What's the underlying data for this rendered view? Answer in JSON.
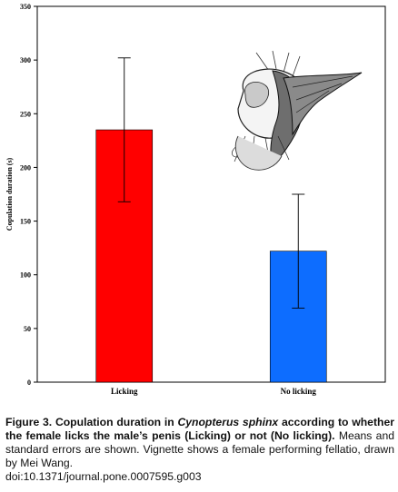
{
  "chart_data": {
    "type": "bar",
    "categories": [
      "Licking",
      "No licking"
    ],
    "values": [
      235,
      122
    ],
    "error": [
      67,
      53
    ],
    "colors": [
      "#ff0000",
      "#0d6dff"
    ],
    "ylabel": "Copulation duration (s)",
    "xlabel": "",
    "ylim": [
      0,
      350
    ],
    "yticks": [
      0,
      50,
      100,
      150,
      200,
      250,
      300,
      350
    ],
    "grid": false
  },
  "caption": {
    "lead_prefix": "Figure 3. Copulation duration in ",
    "species": "Cynopterus sphinx",
    "lead_suffix": " according to whether the female licks the male’s penis (Licking) or not (No licking).",
    "body": " Means and standard errors are shown. Vignette shows a female performing fellatio, drawn by Mei Wang.",
    "doi": "doi:10.1371/journal.pone.0007595.g003"
  },
  "vignette": {
    "icon": "bat-illustration"
  }
}
